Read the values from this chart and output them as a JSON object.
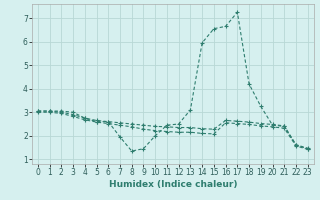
{
  "xlabel": "Humidex (Indice chaleur)",
  "background_color": "#d6f0ef",
  "grid_color": "#b8d8d5",
  "line_color": "#2e7d6e",
  "xlim": [
    -0.5,
    23.5
  ],
  "ylim": [
    0.8,
    7.6
  ],
  "xticks": [
    0,
    1,
    2,
    3,
    4,
    5,
    6,
    7,
    8,
    9,
    10,
    11,
    12,
    13,
    14,
    15,
    16,
    17,
    18,
    19,
    20,
    21,
    22,
    23
  ],
  "yticks": [
    1,
    2,
    3,
    4,
    5,
    6,
    7
  ],
  "lines": [
    {
      "x": [
        0,
        1,
        2,
        3,
        4,
        5,
        6,
        7,
        8,
        9,
        10,
        11,
        12,
        13,
        14,
        15,
        16,
        17,
        18,
        19,
        20,
        21,
        22,
        23
      ],
      "y": [
        3.05,
        3.05,
        3.05,
        3.0,
        2.75,
        2.6,
        2.6,
        1.95,
        1.35,
        1.45,
        2.0,
        2.45,
        2.5,
        3.1,
        5.95,
        6.55,
        6.65,
        7.25,
        4.2,
        3.25,
        2.45,
        2.4,
        1.6,
        1.45
      ]
    },
    {
      "x": [
        0,
        1,
        2,
        3,
        4,
        5,
        6,
        7,
        8,
        9,
        10,
        11,
        12,
        13,
        14,
        15,
        16,
        17,
        18,
        19,
        20,
        21,
        22,
        23
      ],
      "y": [
        3.05,
        3.05,
        3.0,
        2.9,
        2.75,
        2.65,
        2.6,
        2.55,
        2.5,
        2.45,
        2.4,
        2.38,
        2.35,
        2.35,
        2.3,
        2.28,
        2.65,
        2.62,
        2.58,
        2.52,
        2.48,
        2.42,
        1.62,
        1.47
      ]
    },
    {
      "x": [
        0,
        1,
        2,
        3,
        4,
        5,
        6,
        7,
        8,
        9,
        10,
        11,
        12,
        13,
        14,
        15,
        16,
        17,
        18,
        19,
        20,
        21,
        22,
        23
      ],
      "y": [
        3.0,
        3.0,
        2.95,
        2.82,
        2.68,
        2.58,
        2.52,
        2.45,
        2.38,
        2.28,
        2.22,
        2.18,
        2.15,
        2.15,
        2.1,
        2.08,
        2.55,
        2.52,
        2.48,
        2.42,
        2.38,
        2.32,
        1.57,
        1.42
      ]
    }
  ]
}
